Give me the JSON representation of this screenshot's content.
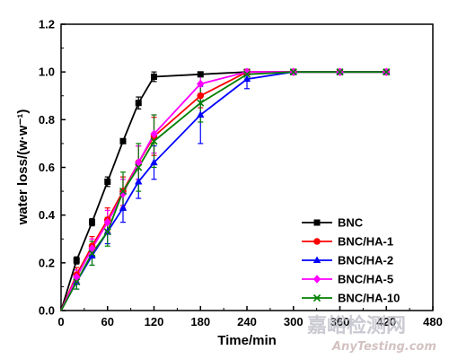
{
  "chart_data": {
    "type": "line",
    "title": "",
    "xlabel": "Time/min",
    "ylabel": "water loss/(w·w⁻¹)",
    "xlim": [
      0,
      480
    ],
    "ylim": [
      0,
      1.2
    ],
    "x_ticks": [
      0,
      60,
      120,
      180,
      240,
      300,
      360,
      420,
      480
    ],
    "y_ticks": [
      0.0,
      0.2,
      0.4,
      0.6,
      0.8,
      1.0,
      1.2
    ],
    "x_tick_labels": [
      "0",
      "60",
      "120",
      "180",
      "240",
      "300",
      "360",
      "420",
      "480"
    ],
    "y_tick_labels": [
      "0.0",
      "0.2",
      "0.4",
      "0.6",
      "0.8",
      "1.0",
      "1.2"
    ],
    "grid": false,
    "legend_position": "bottom-right",
    "x": [
      0,
      20,
      40,
      60,
      80,
      100,
      120,
      180,
      240,
      300,
      360,
      420
    ],
    "series": [
      {
        "name": "BNC",
        "color": "#000000",
        "marker": "square",
        "values": [
          0,
          0.21,
          0.37,
          0.54,
          0.71,
          0.87,
          0.98,
          0.99,
          1.0,
          1.0,
          1.0,
          1.0
        ],
        "errors": [
          0,
          0.015,
          0.015,
          0.02,
          0.01,
          0.025,
          0.02,
          0.01,
          0.005,
          0.005,
          0.005,
          0.005
        ]
      },
      {
        "name": "BNC/HA-1",
        "color": "#ff0000",
        "marker": "circle",
        "values": [
          0,
          0.15,
          0.27,
          0.38,
          0.5,
          0.62,
          0.73,
          0.9,
          1.0,
          1.0,
          1.0,
          1.0
        ],
        "errors": [
          0,
          0.03,
          0.04,
          0.05,
          0.06,
          0.07,
          0.08,
          0.05,
          0.01,
          0.005,
          0.005,
          0.005
        ]
      },
      {
        "name": "BNC/HA-2",
        "color": "#0000ff",
        "marker": "triangle",
        "values": [
          0,
          0.12,
          0.23,
          0.33,
          0.43,
          0.54,
          0.62,
          0.82,
          0.97,
          1.0,
          1.0,
          1.0
        ],
        "errors": [
          0,
          0.03,
          0.04,
          0.05,
          0.06,
          0.07,
          0.07,
          0.12,
          0.04,
          0.005,
          0.005,
          0.005
        ]
      },
      {
        "name": "BNC/HA-5",
        "color": "#ff00ff",
        "marker": "diamond",
        "values": [
          0,
          0.14,
          0.26,
          0.37,
          0.49,
          0.62,
          0.74,
          0.95,
          1.0,
          1.0,
          1.0,
          1.0
        ],
        "errors": [
          0,
          0.03,
          0.04,
          0.05,
          0.06,
          0.07,
          0.08,
          0.04,
          0.01,
          0.005,
          0.005,
          0.005
        ]
      },
      {
        "name": "BNC/HA-10",
        "color": "#008000",
        "marker": "x",
        "values": [
          0,
          0.12,
          0.24,
          0.33,
          0.5,
          0.6,
          0.71,
          0.87,
          0.99,
          1.0,
          1.0,
          1.0
        ],
        "errors": [
          0,
          0.03,
          0.05,
          0.06,
          0.08,
          0.1,
          0.11,
          0.08,
          0.02,
          0.005,
          0.005,
          0.005
        ]
      }
    ]
  },
  "watermark": {
    "line1": "嘉峪检测网",
    "line2": "AnyTesting.com"
  }
}
